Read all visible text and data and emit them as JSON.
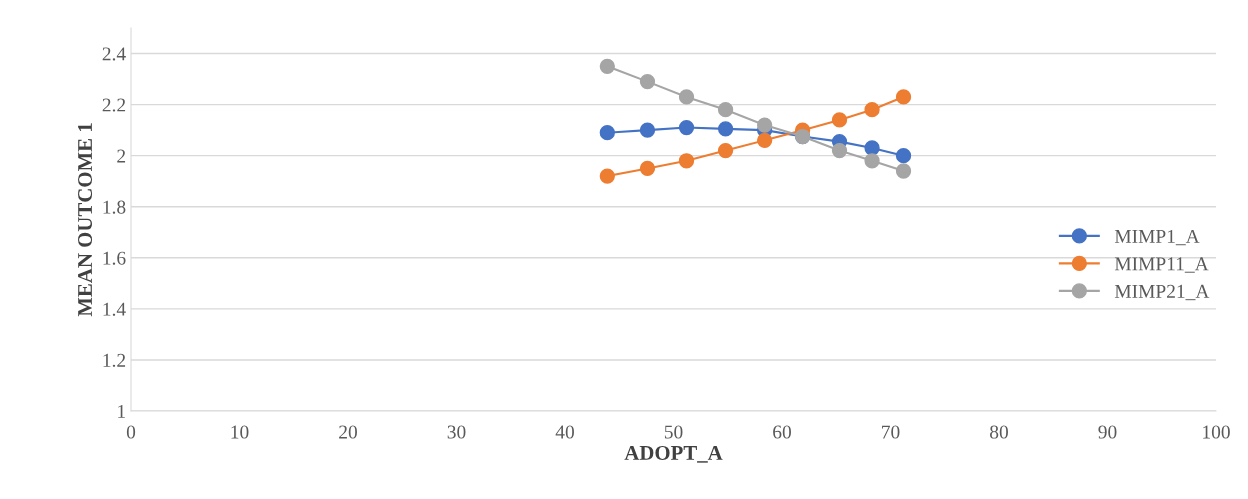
{
  "chart_data": {
    "type": "line",
    "xlabel": "ADOPT_A",
    "ylabel": "MEAN OUTCOME 1",
    "x": [
      43.9,
      47.6,
      51.2,
      54.8,
      58.4,
      61.9,
      65.3,
      68.3,
      71.2
    ],
    "series": [
      {
        "name": "MIMP1_A",
        "color": "#4472c4",
        "values": [
          2.09,
          2.1,
          2.11,
          2.105,
          2.1,
          2.075,
          2.055,
          2.03,
          2.0
        ]
      },
      {
        "name": "MIMP11_A",
        "color": "#ed7d31",
        "values": [
          1.92,
          1.95,
          1.98,
          2.02,
          2.06,
          2.1,
          2.14,
          2.18,
          2.23
        ]
      },
      {
        "name": "MIMP21_A",
        "color": "#a5a5a5",
        "values": [
          2.35,
          2.29,
          2.23,
          2.18,
          2.12,
          2.075,
          2.02,
          1.98,
          1.94
        ]
      }
    ],
    "xlim": [
      0,
      100
    ],
    "xticks": [
      0,
      10,
      20,
      30,
      40,
      50,
      60,
      70,
      80,
      90,
      100
    ],
    "ylim": [
      1,
      2.5
    ],
    "yticks": [
      1,
      1.2,
      1.4,
      1.6,
      1.8,
      2,
      2.2,
      2.4
    ],
    "grid": "y",
    "legend": "right",
    "marker": "circle",
    "line_style": "solid"
  }
}
